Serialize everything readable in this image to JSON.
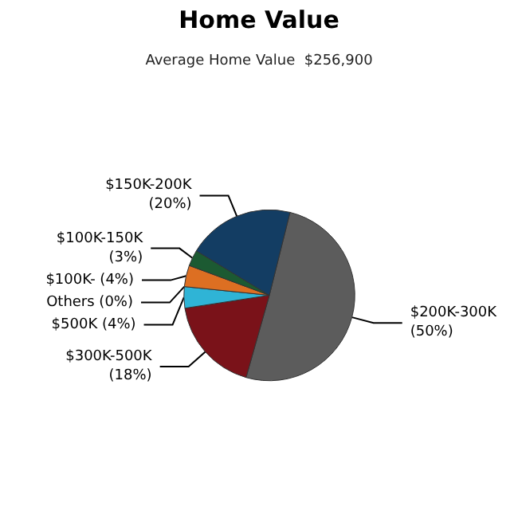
{
  "chart_data": {
    "type": "pie",
    "title": "Home Value",
    "subtitle": "Average Home Value  $256,900",
    "categories": [
      "$200K-300K",
      "$300K-500K",
      "$500K",
      "Others",
      "$100K-",
      "$100K-150K",
      "$150K-200K"
    ],
    "values": [
      50,
      18,
      4,
      0,
      4,
      3,
      20
    ],
    "value_labels": [
      "(50%)",
      "(18%)",
      "(4%)",
      "(0%)",
      "(4%)",
      "(3%)",
      "(20%)"
    ],
    "colors": [
      "#5c5c5c",
      "#7a1219",
      "#2fb4d6",
      "#8a8a8a",
      "#dd6f22",
      "#1c5a32",
      "#133d63"
    ]
  }
}
